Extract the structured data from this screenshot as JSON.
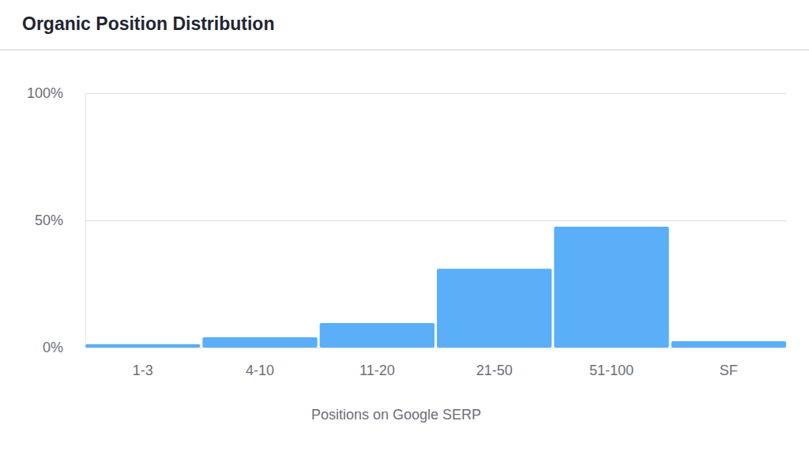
{
  "chart_data": {
    "type": "bar",
    "title": "Organic Position Distribution",
    "x_label": "Positions on Google SERP",
    "categories": [
      "1-3",
      "4-10",
      "11-20",
      "21-50",
      "51-100",
      "SF"
    ],
    "values": [
      1.3,
      4.0,
      9.6,
      31.0,
      47.5,
      2.5
    ],
    "color": "#5aaff8",
    "ylim": [
      0,
      100
    ],
    "yticks": [
      {
        "value": 0,
        "label": "0%"
      },
      {
        "value": 50,
        "label": "50%"
      },
      {
        "value": 100,
        "label": "100%"
      }
    ],
    "grid": true
  }
}
